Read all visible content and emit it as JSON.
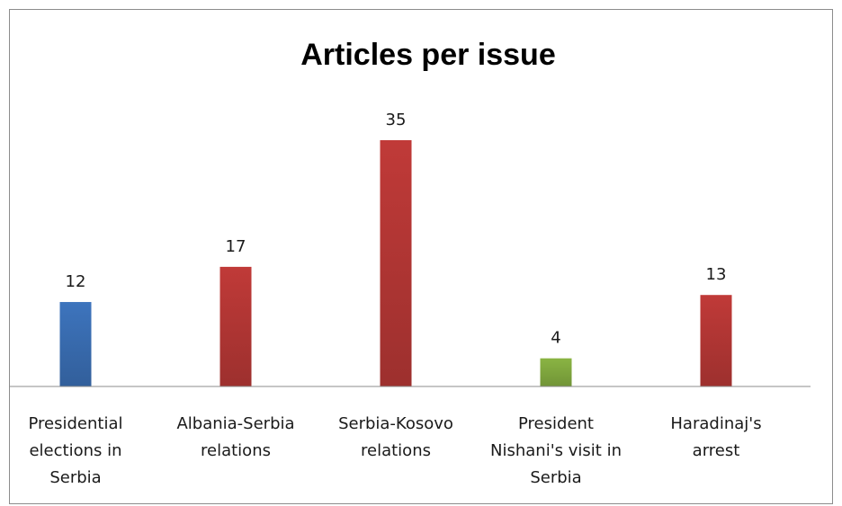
{
  "chart_data": {
    "type": "bar",
    "title": "Articles per issue",
    "xlabel": "",
    "ylabel": "",
    "ylim": [
      0,
      38
    ],
    "grid": false,
    "legend": "none",
    "categories": [
      [
        "Presidential",
        "elections in",
        "Serbia"
      ],
      [
        "Albania-Serbia",
        "relations"
      ],
      [
        "Serbia-Kosovo",
        "relations"
      ],
      [
        "President",
        "Nishani's visit in",
        "Serbia"
      ],
      [
        "Haradinaj's",
        "arrest"
      ]
    ],
    "values": [
      12,
      17,
      35,
      4,
      13
    ],
    "colors": [
      "#3d74bd",
      "#c03a38",
      "#c03a38",
      "#8ab443",
      "#c03a38"
    ]
  }
}
